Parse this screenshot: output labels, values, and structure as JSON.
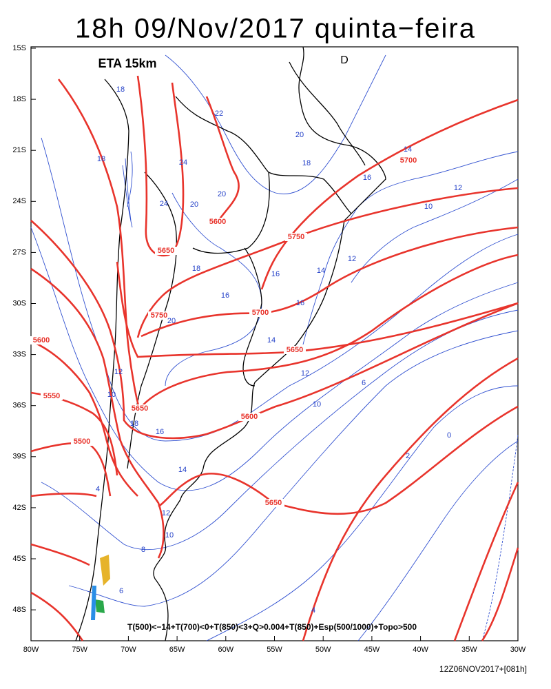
{
  "title": "18h 09/Nov/2017 quinta−feira",
  "model": "ETA 15km",
  "marker": "D",
  "legend": "T(500)<−14+T(700)<0+T(850)<3+Q>0.004+T(850)+Esp(500/1000)+Topo>500",
  "run": "12Z06NOV2017+[081h]",
  "lat_labels": [
    "15S",
    "18S",
    "21S",
    "24S",
    "27S",
    "30S",
    "33S",
    "36S",
    "39S",
    "42S",
    "45S",
    "48S"
  ],
  "lon_labels": [
    "80W",
    "75W",
    "70W",
    "65W",
    "60W",
    "55W",
    "50W",
    "45W",
    "40W",
    "35W",
    "30W"
  ],
  "red_labels": [
    "5700",
    "5600",
    "5750",
    "5650",
    "5750",
    "5700",
    "5600",
    "5650",
    "5550",
    "5650",
    "5600",
    "5500",
    "5650"
  ],
  "blue_labels": [
    "18",
    "22",
    "20",
    "18",
    "18",
    "14",
    "16",
    "12",
    "10",
    "24",
    "24",
    "20",
    "20",
    "18",
    "16",
    "16",
    "14",
    "12",
    "16",
    "20",
    "14",
    "12",
    "10",
    "6",
    "16",
    "18",
    "14",
    "12",
    "10",
    "8",
    "4",
    "6",
    "4",
    "2",
    "0",
    "12",
    "10"
  ]
}
